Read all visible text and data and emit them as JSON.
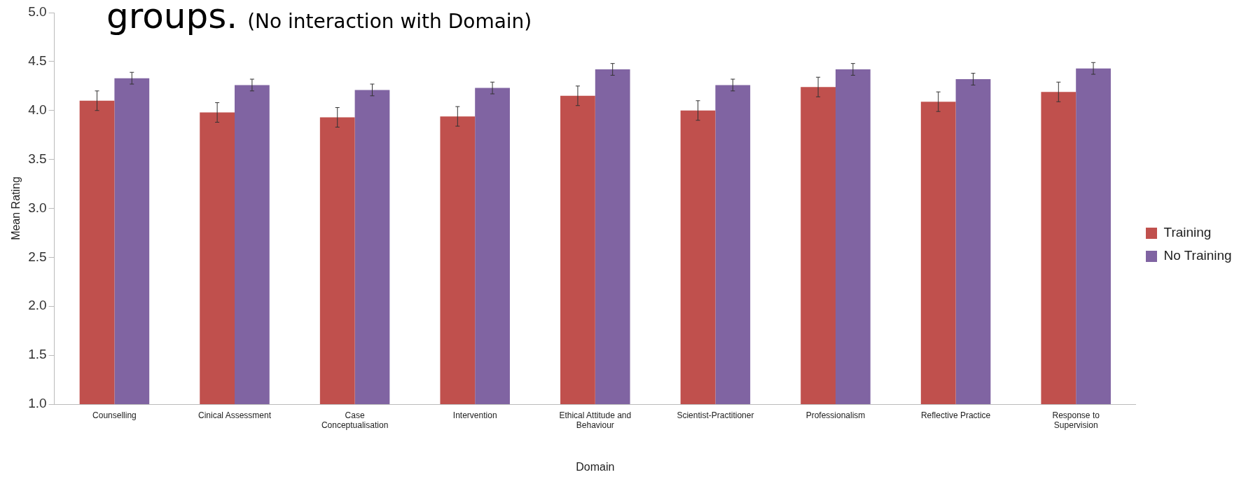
{
  "chart_data": {
    "type": "bar",
    "title": "groups.",
    "subtitle": "(No interaction with Domain)",
    "xlabel": "Domain",
    "ylabel": "Mean Rating",
    "categories": [
      "Counselling",
      "Cinical Assessment",
      "Case Conceptualisation",
      "Intervention",
      "Ethical Attitude and Behaviour",
      "Scientist-Practitioner",
      "Professionalism",
      "Reflective Practice",
      "Response to Supervision"
    ],
    "series": [
      {
        "name": "Training",
        "color": "#c0504d",
        "values": [
          4.1,
          3.98,
          3.93,
          3.94,
          4.15,
          4.0,
          4.24,
          4.09,
          4.19
        ],
        "errors": [
          0.1,
          0.1,
          0.1,
          0.1,
          0.1,
          0.1,
          0.1,
          0.1,
          0.1
        ]
      },
      {
        "name": "No Training",
        "color": "#8064a2",
        "values": [
          4.33,
          4.26,
          4.21,
          4.23,
          4.42,
          4.26,
          4.42,
          4.32,
          4.43
        ],
        "errors": [
          0.06,
          0.06,
          0.06,
          0.06,
          0.06,
          0.06,
          0.06,
          0.06,
          0.06
        ]
      }
    ],
    "ylim": [
      1.0,
      5.0
    ],
    "yticks": [
      {
        "value": 1,
        "label": "1.0"
      },
      1.5,
      {
        "value": 2,
        "label": "2.0"
      },
      2.5,
      {
        "value": 3,
        "label": "3.0"
      },
      3.5,
      {
        "value": 4,
        "label": "4.0"
      },
      4.5,
      {
        "value": 5,
        "label": "5.0"
      }
    ],
    "grid": false,
    "legend": "right"
  }
}
